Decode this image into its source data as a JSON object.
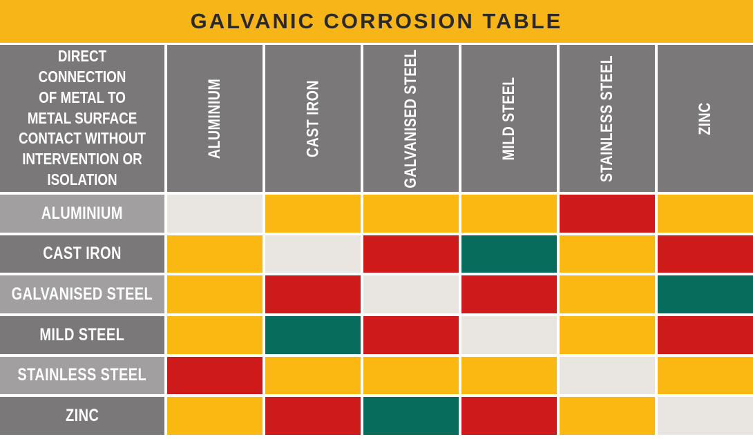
{
  "title": "GALVANIC CORROSION TABLE",
  "colors": {
    "banner_bg": "#F8B517",
    "title_text": "#2B2A28",
    "header_bg": "#7A7878",
    "row_header_light": "#A19F9F",
    "row_header_dark": "#7A7878",
    "grid_gap": "#FFFFFF",
    "header_text": "#FFFFFF"
  },
  "corner": {
    "lines": [
      "DIRECT CONNECTION",
      "OF METAL TO",
      "METAL SURFACE",
      "CONTACT WITHOUT",
      "INTERVENTION OR",
      "ISOLATION"
    ]
  },
  "chart_data": {
    "type": "heatmap",
    "title": "GALVANIC CORROSION TABLE",
    "columns": [
      "ALUMINIUM",
      "CAST IRON",
      "GALVANISED STEEL",
      "MILD STEEL",
      "STAINLESS STEEL",
      "ZINC"
    ],
    "rows": [
      "ALUMINIUM",
      "CAST IRON",
      "GALVANISED STEEL",
      "MILD STEEL",
      "STAINLESS STEEL",
      "ZINC"
    ],
    "palette": {
      "neutral": "#E9E6E1",
      "caution": "#FBB813",
      "severe": "#CE1A1B",
      "safe": "#076C5C"
    },
    "matrix": [
      [
        "neutral",
        "caution",
        "caution",
        "caution",
        "severe",
        "caution"
      ],
      [
        "caution",
        "neutral",
        "severe",
        "safe",
        "caution",
        "severe"
      ],
      [
        "caution",
        "severe",
        "neutral",
        "severe",
        "caution",
        "safe"
      ],
      [
        "caution",
        "safe",
        "severe",
        "neutral",
        "caution",
        "severe"
      ],
      [
        "severe",
        "caution",
        "caution",
        "caution",
        "neutral",
        "caution"
      ],
      [
        "caution",
        "severe",
        "safe",
        "severe",
        "caution",
        "neutral"
      ]
    ]
  }
}
